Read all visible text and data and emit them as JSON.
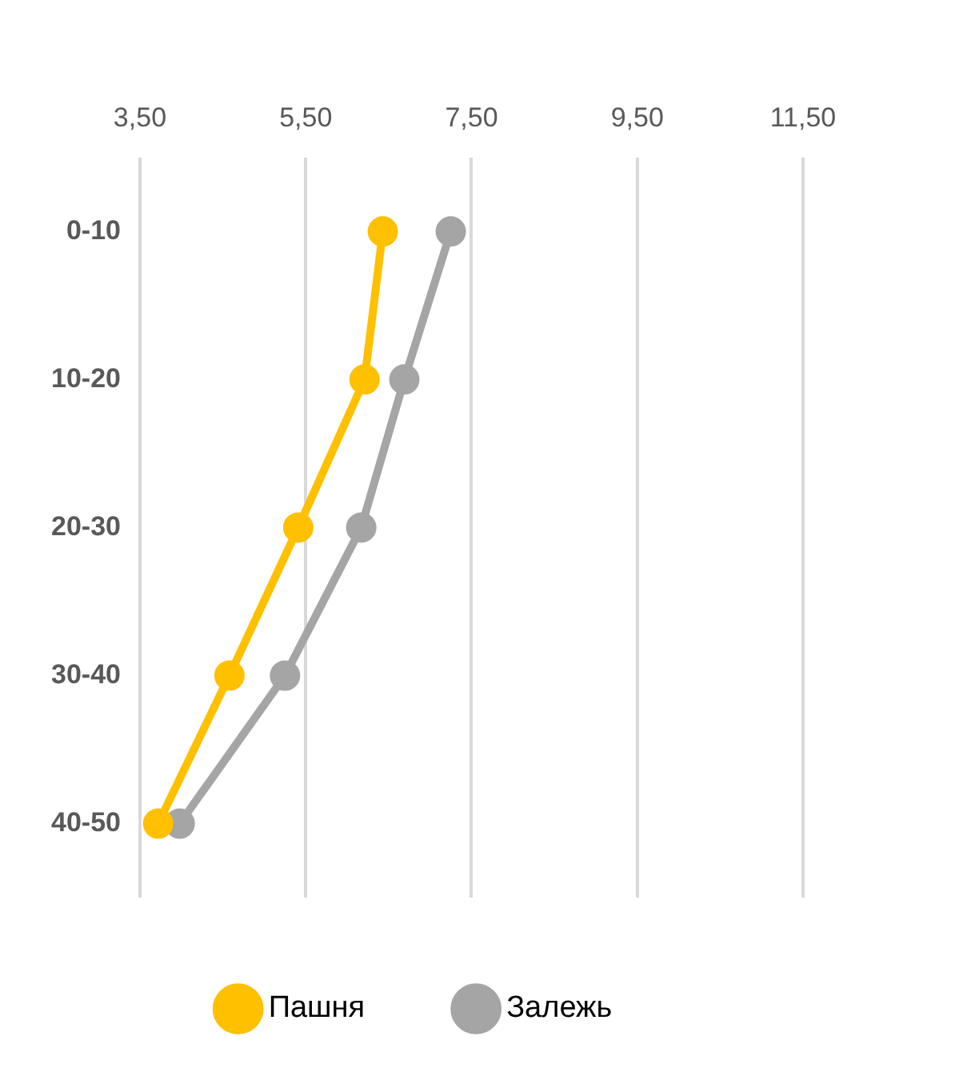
{
  "chart_data": {
    "type": "line",
    "orientation": "horizontal",
    "categories": [
      "0-10",
      "10-20",
      "20-30",
      "30-40",
      "40-50"
    ],
    "series": [
      {
        "name": "Пашня",
        "color": "#ffc000",
        "values": [
          6.43,
          6.21,
          5.41,
          4.58,
          3.72
        ]
      },
      {
        "name": "Залежь",
        "color": "#a5a5a5",
        "values": [
          7.25,
          6.69,
          6.17,
          5.25,
          3.98
        ]
      }
    ],
    "xlim": [
      3.5,
      11.5
    ],
    "xticks": [
      {
        "value": 3.5,
        "label": "3,50"
      },
      {
        "value": 5.5,
        "label": "5,50"
      },
      {
        "value": 7.5,
        "label": "7,50"
      },
      {
        "value": 9.5,
        "label": "9,50"
      },
      {
        "value": 11.5,
        "label": "11,50"
      }
    ],
    "grid": "x",
    "legend": "bottom",
    "marker": "circle",
    "line_style": "solid"
  }
}
